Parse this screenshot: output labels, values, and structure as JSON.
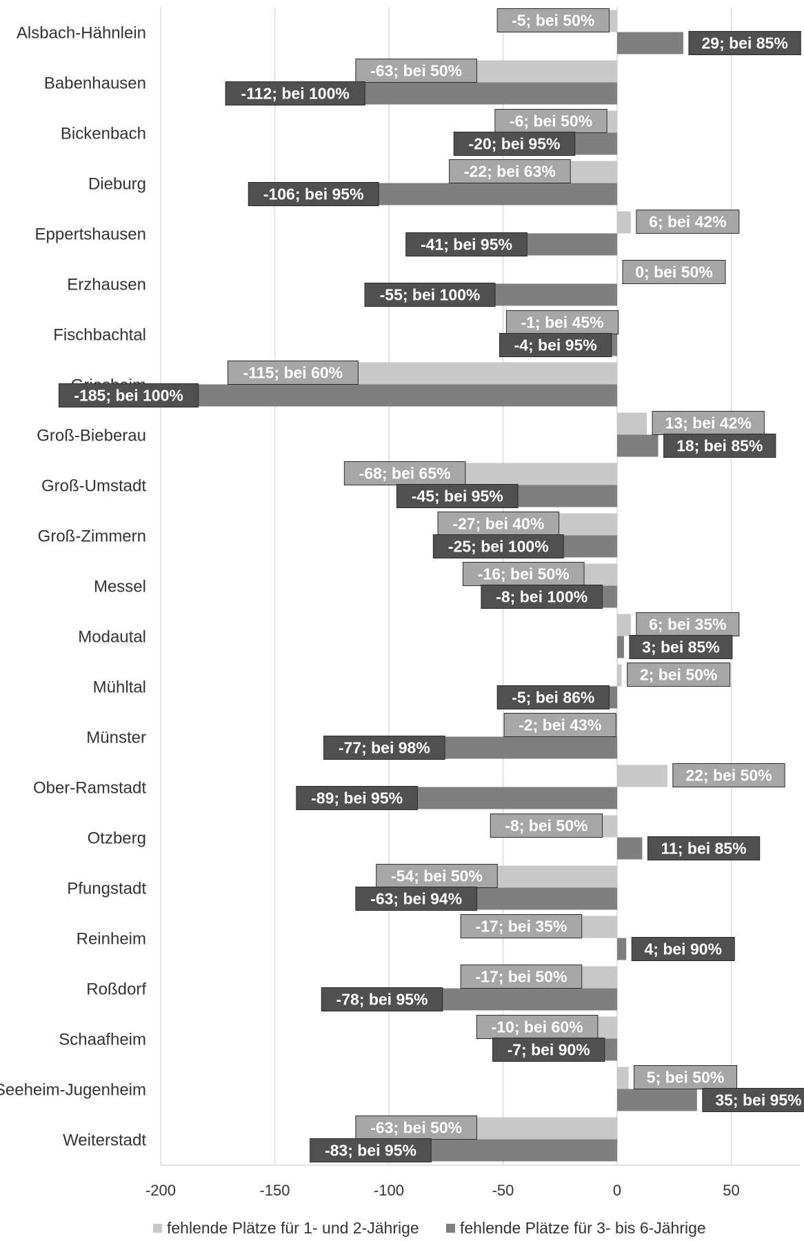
{
  "chart_data": {
    "type": "bar",
    "orientation": "horizontal",
    "categories": [
      "Alsbach-Hähnlein",
      "Babenhausen",
      "Bickenbach",
      "Dieburg",
      "Eppertshausen",
      "Erzhausen",
      "Fischbachtal",
      "Griesheim",
      "Groß-Bieberau",
      "Groß-Umstadt",
      "Groß-Zimmern",
      "Messel",
      "Modautal",
      "Mühltal",
      "Münster",
      "Ober-Ramstadt",
      "Otzberg",
      "Pfungstadt",
      "Reinheim",
      "Roßdorf",
      "Schaafheim",
      "Seeheim-Jugenheim",
      "Weiterstadt"
    ],
    "series": [
      {
        "name": "fehlende Plätze für 1- und 2-Jährige",
        "color": "#c8c8c8",
        "label_fill": "#a6a6a6",
        "values": [
          -5,
          -63,
          -6,
          -22,
          6,
          0,
          -1,
          -115,
          13,
          -68,
          -27,
          -16,
          6,
          2,
          -2,
          22,
          -8,
          -54,
          -17,
          -17,
          -10,
          5,
          -63
        ],
        "labels": [
          "-5; bei 50%",
          "-63; bei 50%",
          "-6; bei 50%",
          "-22; bei 63%",
          "6; bei 42%",
          "0; bei 50%",
          "-1; bei 45%",
          "-115; bei 60%",
          "13; bei 42%",
          "-68; bei 65%",
          "-27; bei 40%",
          "-16; bei 50%",
          "6; bei 35%",
          "2; bei 50%",
          "-2; bei 43%",
          "22; bei 50%",
          "-8; bei 50%",
          "-54; bei 50%",
          "-17; bei 35%",
          "-17; bei 50%",
          "-10; bei 60%",
          "5; bei 50%",
          "-63; bei 50%"
        ]
      },
      {
        "name": "fehlende Plätze für 3- bis 6-Jährige",
        "color": "#7f7f7f",
        "label_fill": "#505050",
        "values": [
          29,
          -112,
          -20,
          -106,
          -41,
          -55,
          -4,
          -185,
          18,
          -45,
          -25,
          -8,
          3,
          -5,
          -77,
          -89,
          11,
          -63,
          4,
          -78,
          -7,
          35,
          -83
        ],
        "labels": [
          "29; bei 85%",
          "-112; bei 100%",
          "-20; bei 95%",
          "-106; bei 95%",
          "-41; bei 95%",
          "-55; bei 100%",
          "-4; bei 95%",
          "-185; bei 100%",
          "18; bei 85%",
          "-45; bei 95%",
          "-25; bei 100%",
          "-8; bei 100%",
          "3; bei 85%",
          "-5; bei 86%",
          "-77; bei 98%",
          "-89; bei 95%",
          "11; bei 85%",
          "-63; bei 94%",
          "4; bei 90%",
          "-78; bei 95%",
          "-7; bei 90%",
          "35; bei 95%",
          "-83; bei 95%"
        ]
      }
    ],
    "xlim": [
      -200,
      80
    ],
    "xticks": [
      -200,
      -150,
      -100,
      -50,
      0,
      50
    ],
    "grid": true,
    "legend_position": "bottom"
  }
}
